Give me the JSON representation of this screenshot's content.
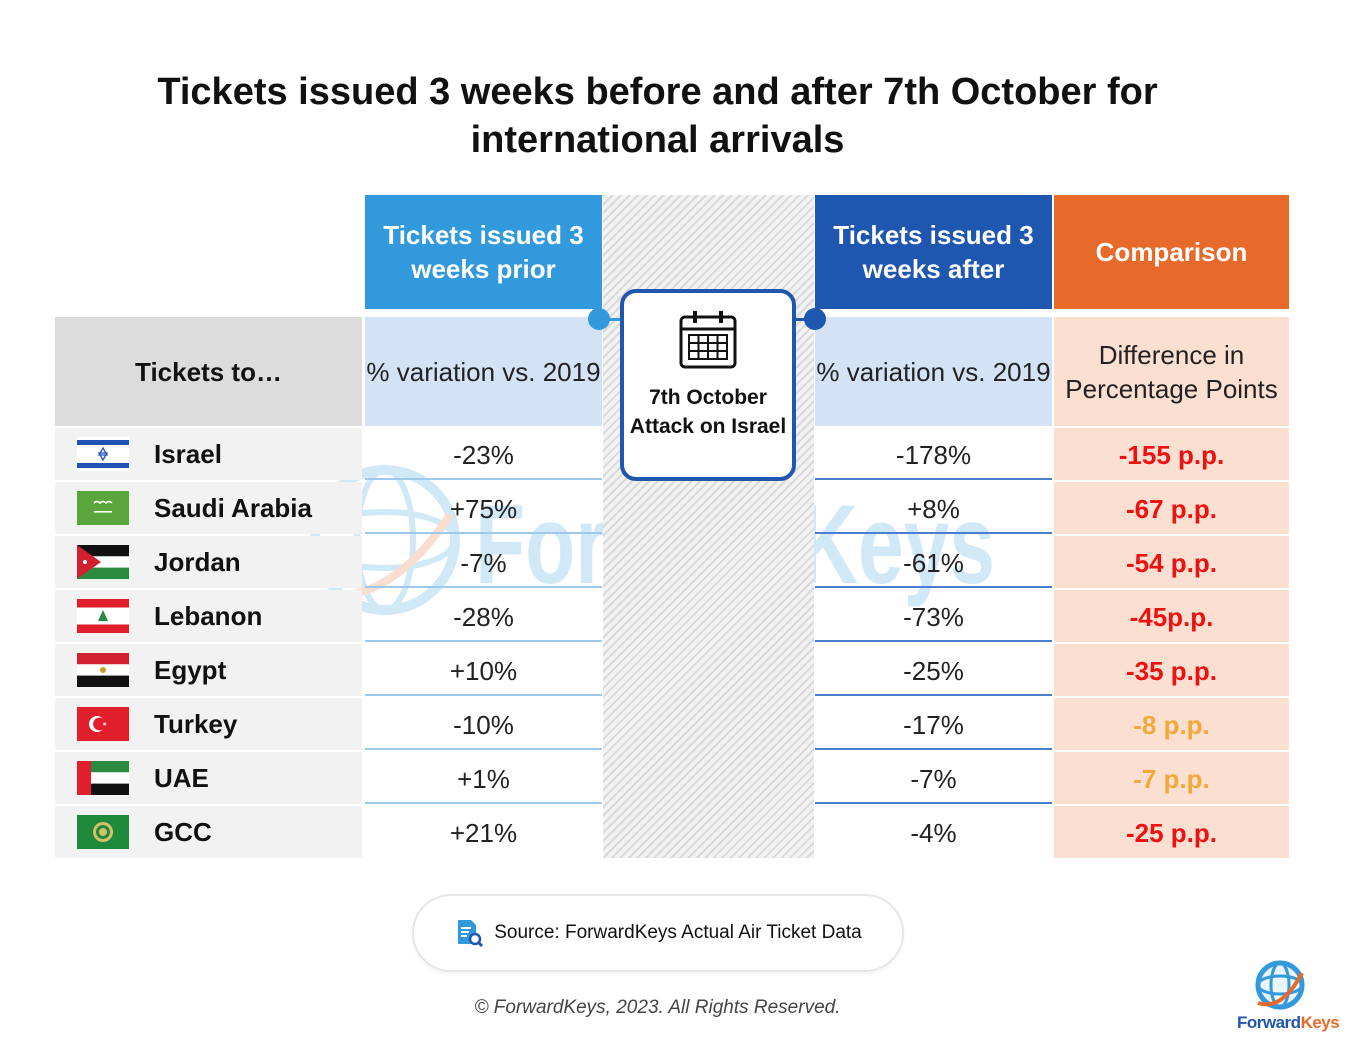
{
  "title": "Tickets issued 3 weeks before and after 7th October for international arrivals",
  "header": {
    "prior": "Tickets issued 3 weeks prior",
    "after": "Tickets issued 3 weeks after",
    "comparison": "Comparison"
  },
  "subheader": {
    "country": "Tickets to…",
    "prior": "% variation vs. 2019",
    "after": "% variation vs. 2019",
    "comparison": "Difference in Percentage Points"
  },
  "event": {
    "label": "7th October Attack on Israel",
    "icon": "calendar-icon"
  },
  "colors": {
    "prior_header": "#3399dd",
    "after_header": "#1f56b0",
    "comparison_header": "#e86a2a",
    "comparison_red": "#ee1111",
    "comparison_amber": "#f2a93b"
  },
  "chart_data": {
    "type": "table",
    "columns": [
      "Tickets to…",
      "Tickets issued 3 weeks prior",
      "Tickets issued 3 weeks after",
      "Comparison"
    ],
    "rows": [
      {
        "country": "Israel",
        "prior": "-23%",
        "after": "-178%",
        "comparison": "-155 p.p.",
        "prior_value": -23,
        "after_value": -178,
        "diff_value": -155,
        "severity": "red"
      },
      {
        "country": "Saudi Arabia",
        "prior": "+75%",
        "after": "+8%",
        "comparison": "-67 p.p.",
        "prior_value": 75,
        "after_value": 8,
        "diff_value": -67,
        "severity": "red"
      },
      {
        "country": "Jordan",
        "prior": "-7%",
        "after": "-61%",
        "comparison": "-54 p.p.",
        "prior_value": -7,
        "after_value": -61,
        "diff_value": -54,
        "severity": "red"
      },
      {
        "country": "Lebanon",
        "prior": "-28%",
        "after": "-73%",
        "comparison": "-45p.p.",
        "prior_value": -28,
        "after_value": -73,
        "diff_value": -45,
        "severity": "red"
      },
      {
        "country": "Egypt",
        "prior": "+10%",
        "after": "-25%",
        "comparison": "-35 p.p.",
        "prior_value": 10,
        "after_value": -25,
        "diff_value": -35,
        "severity": "red"
      },
      {
        "country": "Turkey",
        "prior": "-10%",
        "after": "-17%",
        "comparison": "-8 p.p.",
        "prior_value": -10,
        "after_value": -17,
        "diff_value": -8,
        "severity": "amber"
      },
      {
        "country": "UAE",
        "prior": "+1%",
        "after": "-7%",
        "comparison": "-7 p.p.",
        "prior_value": 1,
        "after_value": -7,
        "diff_value": -7,
        "severity": "amber"
      },
      {
        "country": "GCC",
        "prior": "+21%",
        "after": "-4%",
        "comparison": "-25 p.p.",
        "prior_value": 21,
        "after_value": -4,
        "diff_value": -25,
        "severity": "red"
      }
    ]
  },
  "source": {
    "text": "Source: ForwardKeys Actual Air Ticket Data",
    "icon": "document-search-icon"
  },
  "copyright": "© ForwardKeys, 2023. All Rights Reserved.",
  "logo": {
    "text_a": "Forward",
    "text_b": "Keys",
    "watermark_text": "ForwardKeys"
  }
}
